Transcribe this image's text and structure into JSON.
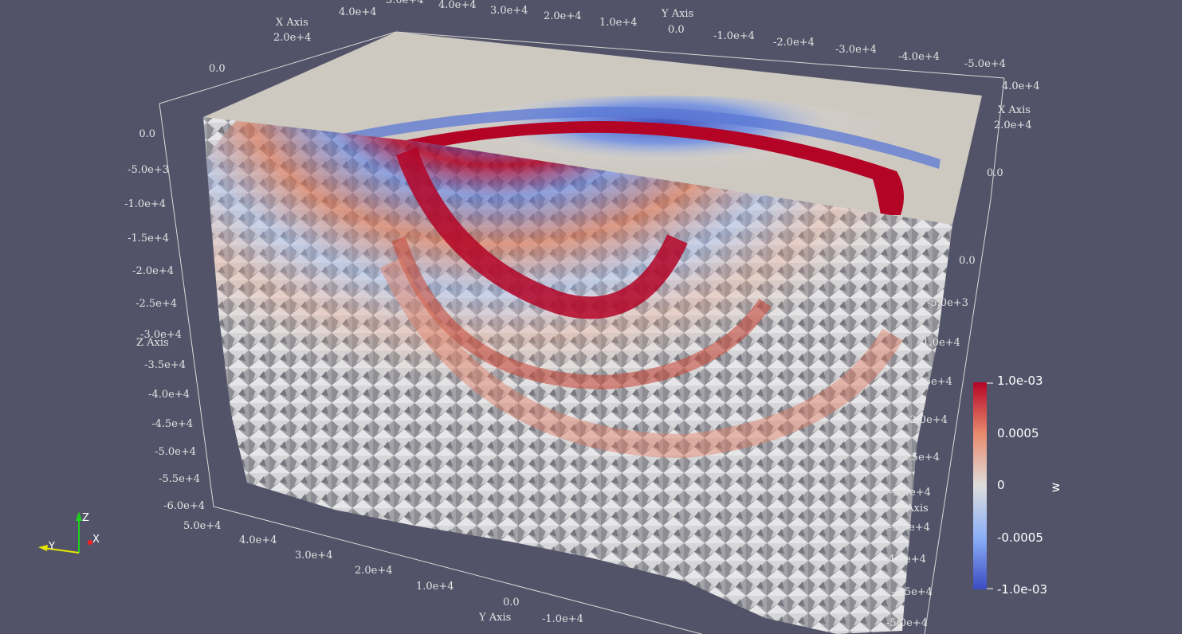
{
  "scene": {
    "background": "#525368",
    "axes": {
      "x_axis_title": "X Axis",
      "y_axis_title": "Y Axis",
      "z_axis_title": "Z Axis",
      "top_y_ticks": [
        "3.0e+4",
        "4.0e+4",
        "3.0e+4",
        "2.0e+4",
        "1.0e+4",
        "0.0",
        "-1.0e+4",
        "-2.0e+4",
        "-3.0e+4",
        "-4.0e+4",
        "-5.0e+4"
      ],
      "top_left_x_ticks": [
        "4.0e+4",
        "2.0e+4",
        "0.0"
      ],
      "right_x_ticks": [
        "4.0e+4",
        "2.0e+4",
        "0.0"
      ],
      "left_z_ticks": [
        "0.0",
        "-5.0e+3",
        "-1.0e+4",
        "-1.5e+4",
        "-2.0e+4",
        "-2.5e+4",
        "-3.0e+4",
        "-3.5e+4",
        "-4.0e+4",
        "-4.5e+4",
        "-5.0e+4",
        "-5.5e+4",
        "-6.0e+4"
      ],
      "bottom_y_ticks": [
        "5.0e+4",
        "4.0e+4",
        "3.0e+4",
        "2.0e+4",
        "1.0e+4",
        "0.0",
        "-1.0e+4",
        "-2.0e+4"
      ],
      "right_z_ticks": [
        "0.0",
        "-5.0e+3",
        "-1.0e+4",
        "-1.5e+4",
        "-2.0e+4",
        "-2.5e+4",
        "-3.0e+4",
        "-3.5e+4",
        "-4.0e+4",
        "-4.5e+4",
        "-5.0e+4"
      ]
    },
    "colorbar": {
      "title": "w",
      "labels": [
        "1.0e-03",
        "0.0005",
        "0",
        "-0.0005",
        "-1.0e-03"
      ],
      "color_high": "#b40426",
      "color_mid": "#dddddd",
      "color_low": "#3b4cc0"
    },
    "orientation": {
      "x_label": "X",
      "y_label": "Y",
      "z_label": "Z",
      "x_color": "#ff2020",
      "y_color": "#e6e600",
      "z_color": "#20d020"
    }
  }
}
